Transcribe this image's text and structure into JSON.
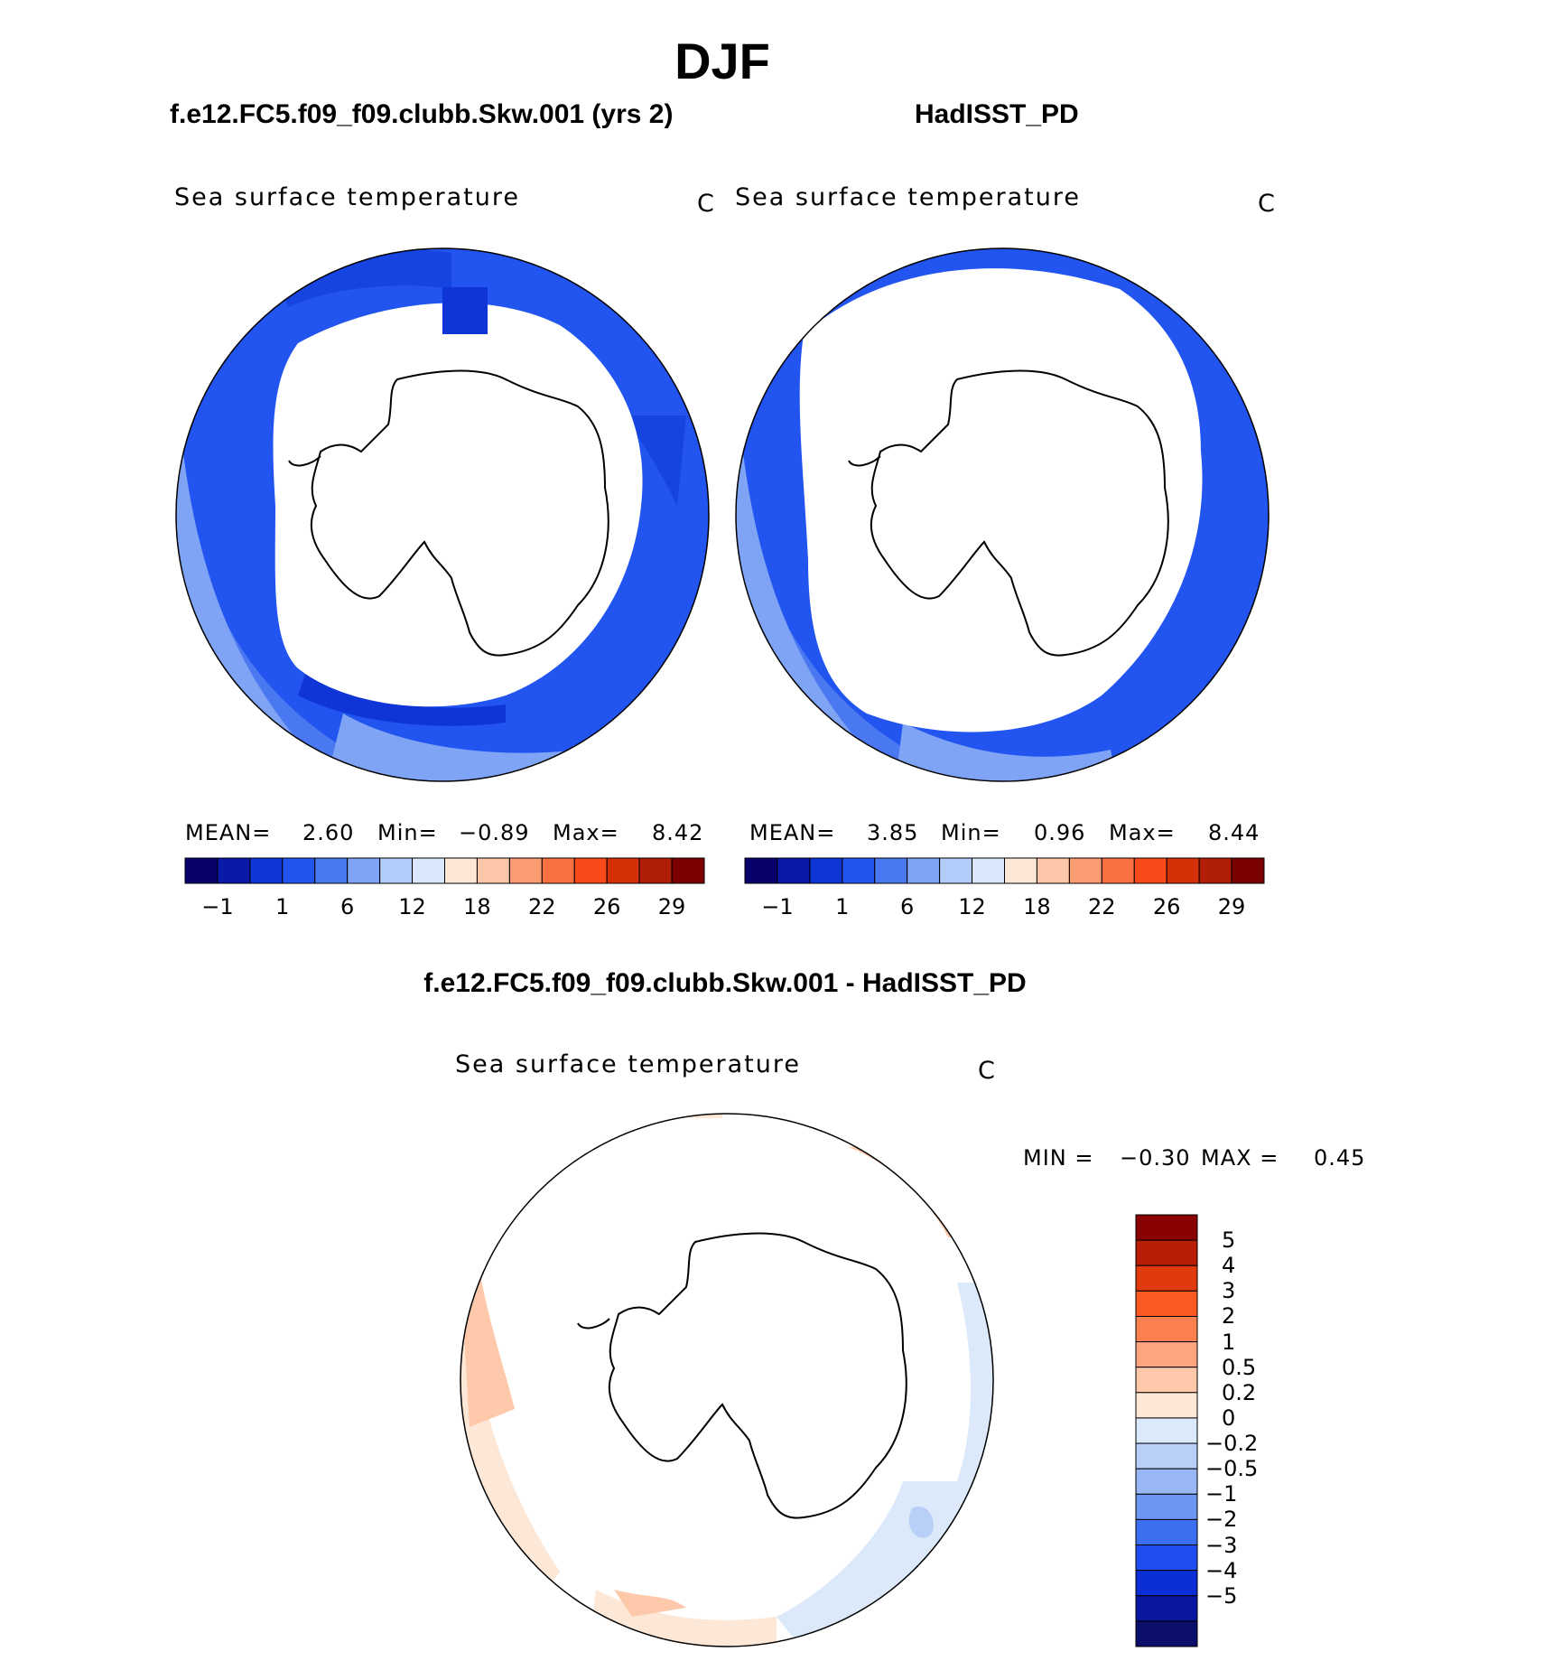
{
  "main_title": "DJF",
  "panel_model": {
    "title": "f.e12.FC5.f09_f09.clubb.Skw.001 (yrs 2)",
    "field": "Sea surface temperature",
    "units": "C",
    "stats": {
      "mean_label": "MEAN=",
      "mean": "2.60",
      "min_label": "Min=",
      "min": "−0.89",
      "max_label": "Max=",
      "max": "8.42"
    }
  },
  "panel_obs": {
    "title": "HadISST_PD",
    "field": "Sea surface temperature",
    "units": "C",
    "stats": {
      "mean_label": "MEAN=",
      "mean": "3.85",
      "min_label": "Min=",
      "min": "0.96",
      "max_label": "Max=",
      "max": "8.44"
    }
  },
  "panel_diff": {
    "title": "f.e12.FC5.f09_f09.clubb.Skw.001 - HadISST_PD",
    "field": "Sea surface temperature",
    "units": "C",
    "stats": {
      "min_label": "MIN =",
      "min": "−0.30",
      "max_label": "MAX =",
      "max": "0.45"
    }
  },
  "colorbar_abs": {
    "colors": [
      "#08006b",
      "#0a1aa8",
      "#0f35d6",
      "#2255f0",
      "#4a78f0",
      "#7fa3f5",
      "#b3cbf8",
      "#dbe8fb",
      "#fde6d6",
      "#fcc6a8",
      "#fb9b72",
      "#fb7040",
      "#fa4a1a",
      "#d63008",
      "#b01f05",
      "#7b0000"
    ],
    "tick_labels": [
      "−1",
      "1",
      "6",
      "12",
      "18",
      "22",
      "26",
      "29"
    ]
  },
  "colorbar_diff": {
    "colors": [
      "#8b0000",
      "#b81e05",
      "#e23a0c",
      "#fc5a22",
      "#fc8050",
      "#fca57e",
      "#fdc9aa",
      "#fde8d8",
      "#dbe9fb",
      "#b8cff8",
      "#99b7f6",
      "#6d95f2",
      "#3c6ff0",
      "#1f4ff0",
      "#0a2fd6",
      "#08179e",
      "#0b0e6b"
    ],
    "tick_labels": [
      "5",
      "4",
      "3",
      "2",
      "1",
      "0.5",
      "0.2",
      "0",
      "−0.2",
      "−0.5",
      "−1",
      "−2",
      "−3",
      "−4",
      "−5"
    ]
  }
}
